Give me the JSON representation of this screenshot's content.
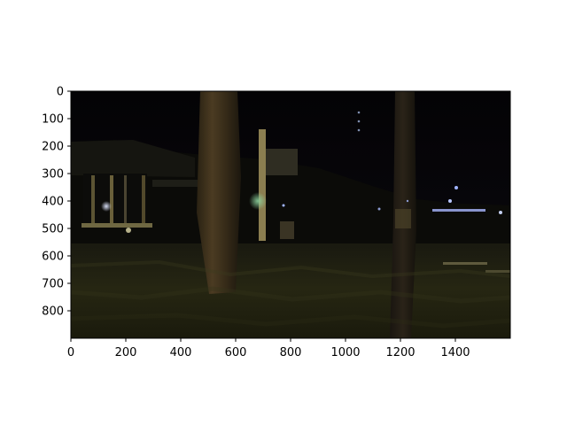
{
  "figure": {
    "background": "#ffffff",
    "image_description_colors": {
      "sky": "#050406",
      "foliage": "#1a1a0e",
      "light": "#cfd6ff",
      "warm_light": "#9c8c4e"
    }
  },
  "axes": {
    "x_ticks": [
      0,
      200,
      400,
      600,
      800,
      1000,
      1200,
      1400
    ],
    "y_ticks": [
      0,
      100,
      200,
      300,
      400,
      500,
      600,
      700,
      800
    ],
    "x_range": [
      0,
      1600
    ],
    "y_range": [
      0,
      900
    ],
    "y_inverted": true
  }
}
